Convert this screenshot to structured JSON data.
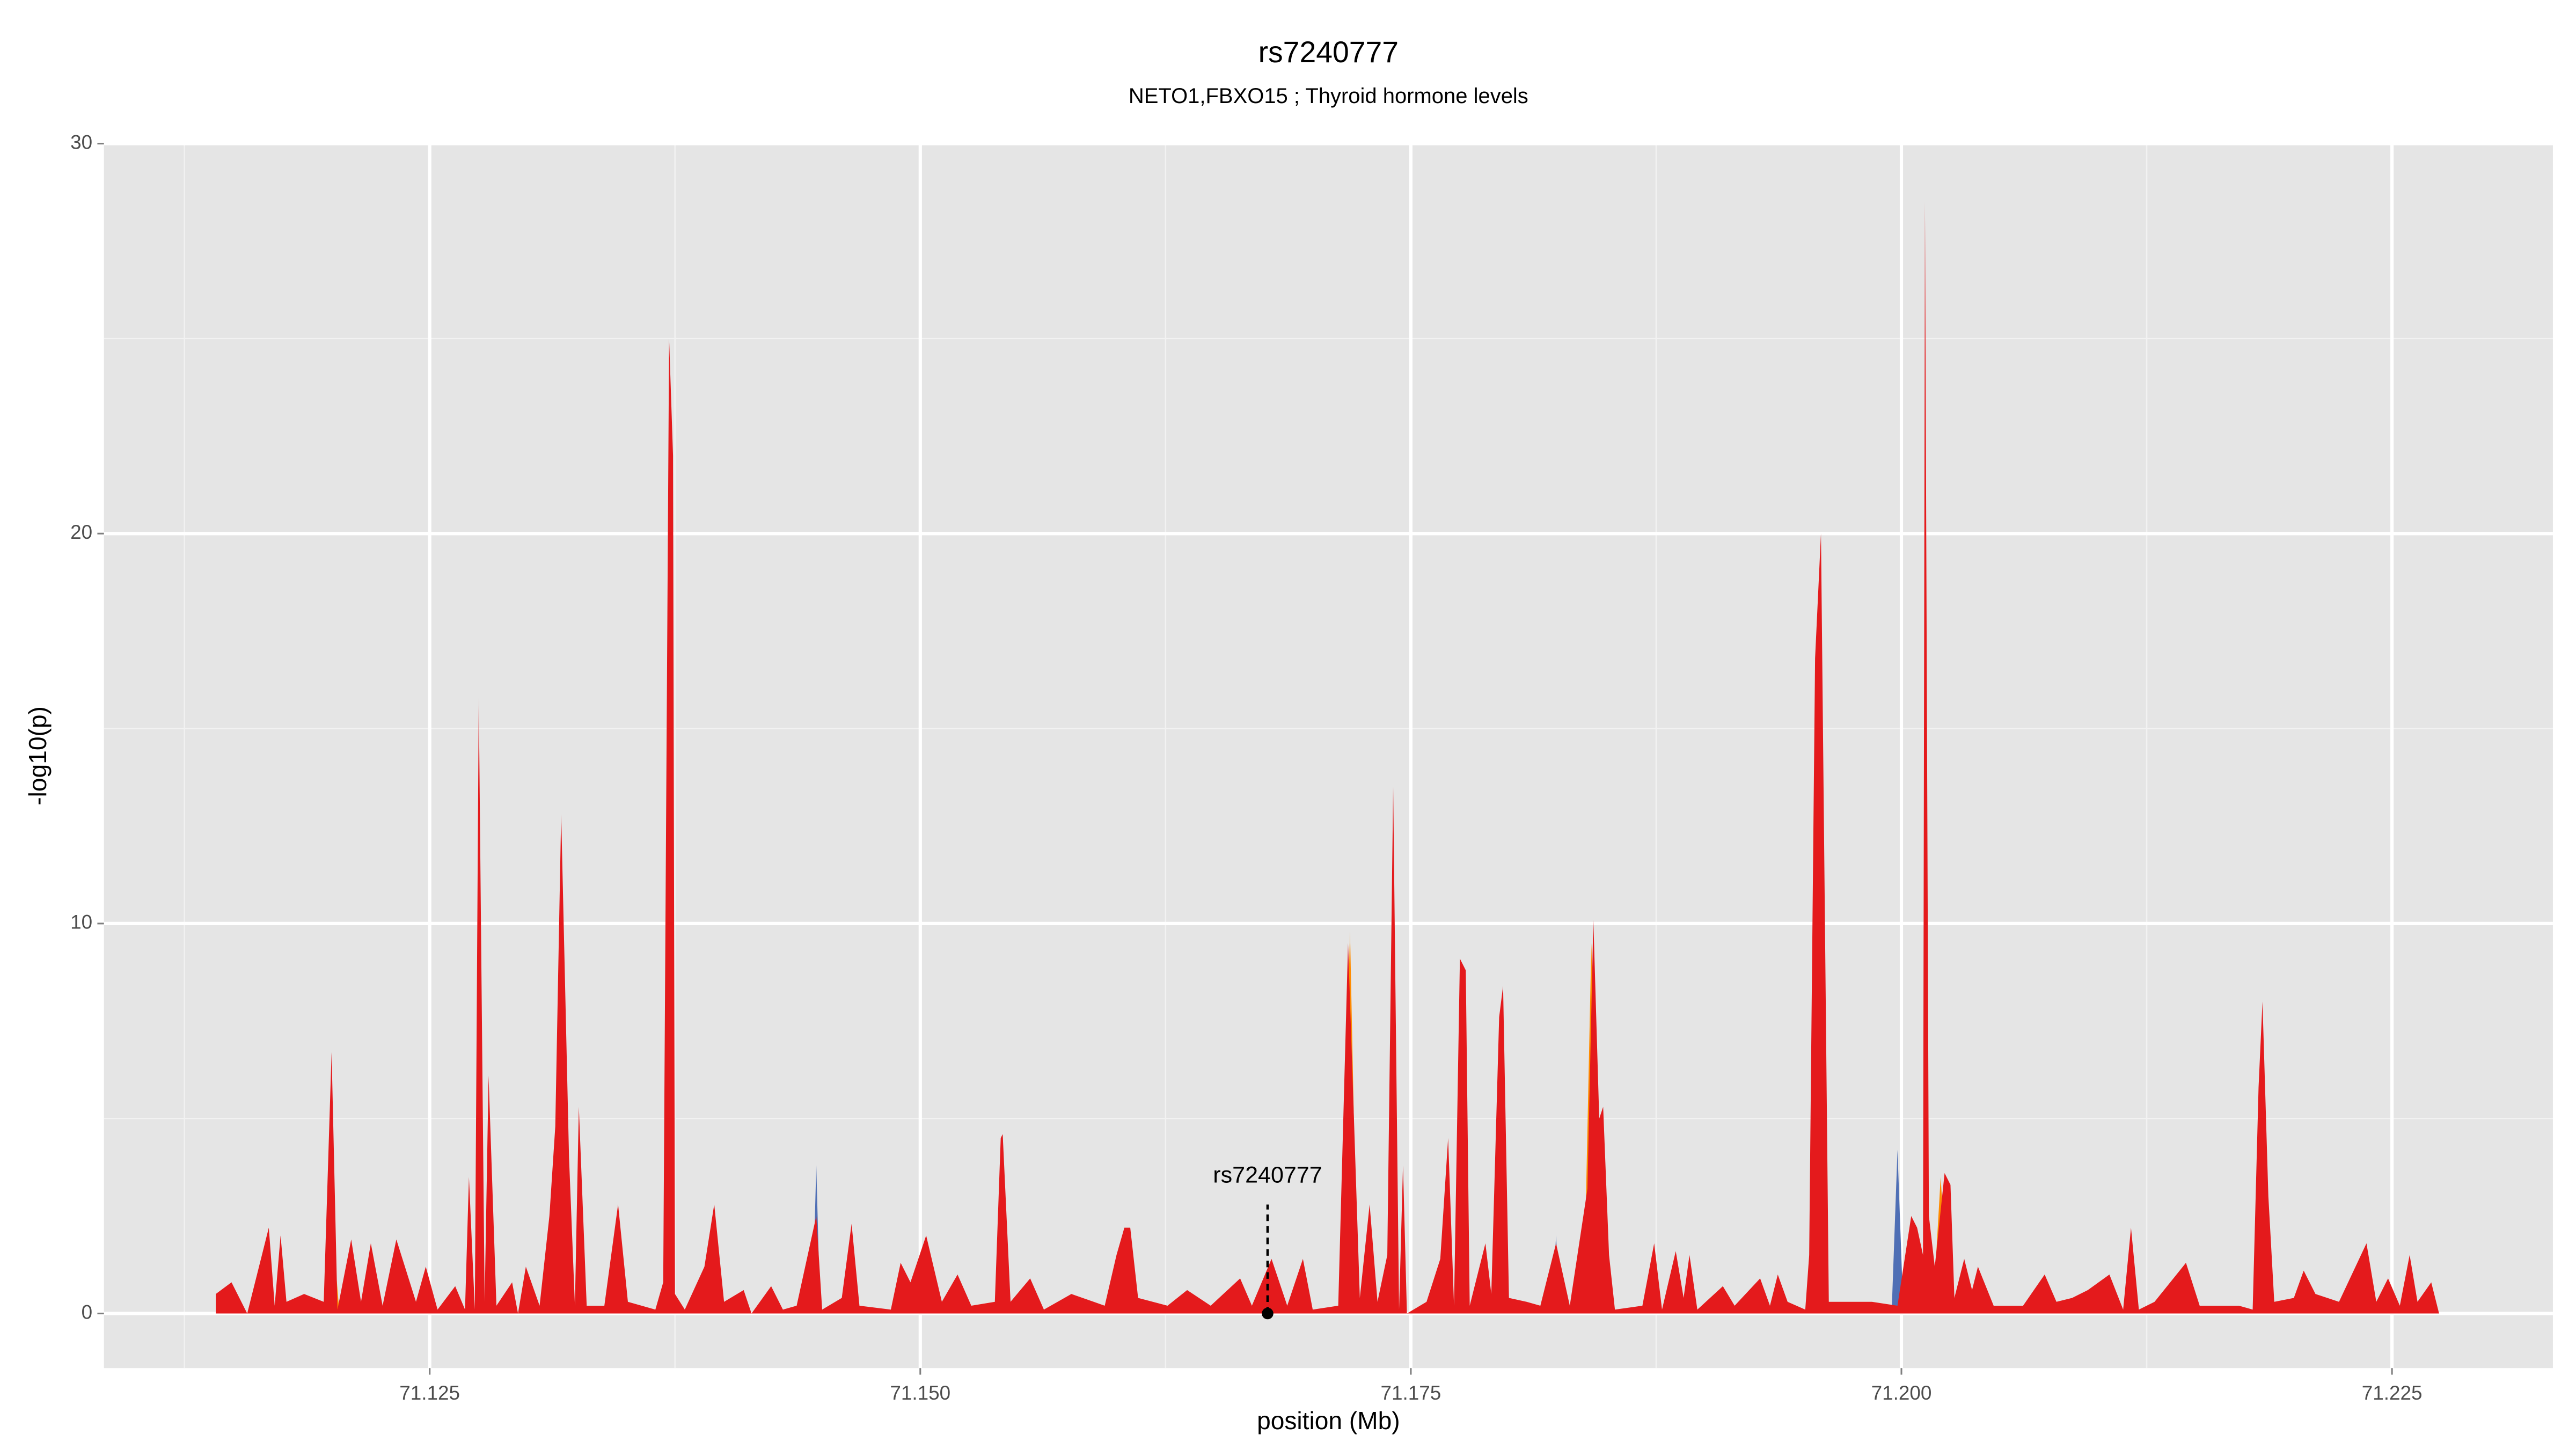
{
  "chart_data": {
    "type": "area",
    "title": "rs7240777",
    "subtitle": "NETO1,FBXO15 ; Thyroid hormone levels",
    "x_label": "position (Mb)",
    "y_label": "-log10(p)",
    "xlim": [
      71.1084,
      71.2332
    ],
    "ylim": [
      -1.4,
      30
    ],
    "xticks": [
      71.125,
      {
        "value": 71.15,
        "label": "71.150"
      },
      71.175,
      {
        "value": 71.2,
        "label": "71.200"
      },
      71.225
    ],
    "yticks": [
      0,
      10,
      20,
      30
    ],
    "minor_xticks": [
      71.1125,
      71.1375,
      71.1625,
      71.1875,
      71.2125
    ],
    "minor_yticks": [
      5,
      15,
      25
    ],
    "grid": true,
    "annotation": {
      "label": "rs7240777",
      "x": 71.1677,
      "y": 0
    },
    "series": [
      {
        "color": "#4f6fb5",
        "x": [
          71.1445,
          71.1447,
          71.1449,
          71.1539,
          71.1542,
          71.1545,
          71.1822,
          71.1824,
          71.1826,
          71.1995,
          71.1998,
          71.2001
        ],
        "values": [
          0,
          3.8,
          0,
          0,
          4.6,
          0,
          0,
          2,
          0,
          0,
          4.2,
          0
        ]
      },
      {
        "color": "#ff8c00",
        "x": [
          71.1196,
          71.12,
          71.1204,
          71.1268,
          71.127,
          71.1272,
          71.1714,
          71.1719,
          71.1723,
          71.1727,
          71.1729,
          71.1731,
          71.1838,
          71.1842,
          71.1846,
          71.2016,
          71.202,
          71.2024
        ],
        "values": [
          0,
          2.5,
          0,
          0,
          3,
          0,
          0,
          9.8,
          0,
          0,
          2.7,
          0,
          0,
          9.5,
          0,
          0,
          3.5,
          0
        ]
      },
      {
        "color": "#e41a1c",
        "x": [
          71.1141,
          71.1149,
          71.1157,
          71.1168,
          71.1171,
          71.1174,
          71.1177,
          71.1186,
          71.1196,
          71.12,
          71.1203,
          71.121,
          71.1215,
          71.122,
          71.1226,
          71.1233,
          71.1243,
          71.1248,
          71.1254,
          71.1263,
          71.1268,
          71.127,
          71.1273,
          71.1275,
          71.1278,
          71.128,
          71.1284,
          71.1292,
          71.1295,
          71.1299,
          71.1306,
          71.1311,
          71.1314,
          71.1317,
          71.1321,
          71.1324,
          71.1326,
          71.133,
          71.1339,
          71.1346,
          71.1351,
          71.1365,
          71.1369,
          71.1372,
          71.1374,
          71.1375,
          71.138,
          71.139,
          71.1395,
          71.14,
          71.141,
          71.1414,
          71.1424,
          71.143,
          71.1437,
          71.1447,
          71.145,
          71.146,
          71.1465,
          71.1469,
          71.1485,
          71.149,
          71.1495,
          71.1503,
          71.1511,
          71.1519,
          71.1526,
          71.1538,
          71.1541,
          71.1542,
          71.1546,
          71.1556,
          71.1563,
          71.1577,
          71.1594,
          71.16,
          71.1604,
          71.1607,
          71.1611,
          71.1626,
          71.1636,
          71.1648,
          71.1663,
          71.1669,
          71.1679,
          71.1687,
          71.1695,
          71.17,
          71.1713,
          71.1718,
          71.1721,
          71.1724,
          71.1729,
          71.1733,
          71.1738,
          71.1741,
          71.1742,
          71.1744,
          71.1746,
          71.1748,
          71.1758,
          71.1765,
          71.1769,
          71.1772,
          71.1775,
          71.1778,
          71.178,
          71.1788,
          71.1791,
          71.1795,
          71.1797,
          71.18,
          71.1809,
          71.1816,
          71.1824,
          71.1831,
          71.184,
          71.1843,
          71.1846,
          71.1848,
          71.1851,
          71.1854,
          71.1868,
          71.1874,
          71.1878,
          71.1885,
          71.1889,
          71.1892,
          71.1896,
          71.1909,
          71.1915,
          71.1928,
          71.1933,
          71.1937,
          71.1942,
          71.1951,
          71.1953,
          71.1956,
          71.1959,
          71.1963,
          71.1976,
          71.1985,
          71.1998,
          71.2005,
          71.2008,
          71.2011,
          71.2012,
          71.2014,
          71.2017,
          71.2022,
          71.2025,
          71.2027,
          71.2032,
          71.2036,
          71.2039,
          71.2047,
          71.2062,
          71.2073,
          71.2079,
          71.2087,
          71.2095,
          71.2106,
          71.2113,
          71.2117,
          71.2121,
          71.2129,
          71.2145,
          71.2152,
          71.2172,
          71.2179,
          71.2182,
          71.2184,
          71.2187,
          71.219,
          71.22,
          71.2205,
          71.2211,
          71.2223,
          71.2237,
          71.2242,
          71.2248,
          71.2254,
          71.2259,
          71.2263,
          71.227,
          71.2274
        ],
        "values": [
          0.5,
          0.8,
          0,
          2.2,
          0.2,
          2,
          0.3,
          0.5,
          0.3,
          6.7,
          0.1,
          1.9,
          0.3,
          1.8,
          0.2,
          1.9,
          0.3,
          1.2,
          0.1,
          0.7,
          0.1,
          3.5,
          0.1,
          15.8,
          0.3,
          6.1,
          0.2,
          0.8,
          0,
          1.2,
          0.2,
          2.5,
          4.8,
          12.8,
          4,
          0.2,
          5.3,
          0.2,
          0.2,
          2.8,
          0.3,
          0.1,
          0.8,
          25,
          22,
          0.5,
          0.1,
          1.2,
          2.8,
          0.3,
          0.6,
          0,
          0.7,
          0.1,
          0.2,
          2.5,
          0.1,
          0.4,
          2.3,
          0.2,
          0.1,
          1.3,
          0.8,
          2,
          0.3,
          1,
          0.2,
          0.3,
          4.5,
          4.6,
          0.3,
          0.9,
          0.1,
          0.5,
          0.2,
          1.5,
          2.2,
          2.2,
          0.4,
          0.2,
          0.6,
          0.2,
          0.9,
          0.2,
          1.4,
          0.2,
          1.4,
          0.1,
          0.2,
          9.5,
          5,
          0.4,
          2.8,
          0.3,
          1.5,
          13.5,
          9,
          0.1,
          3.8,
          0,
          0.3,
          1.4,
          4.5,
          0.2,
          9.1,
          8.8,
          0.2,
          1.8,
          0.5,
          7.6,
          8.4,
          0.4,
          0.3,
          0.2,
          1.8,
          0.2,
          3.2,
          10.1,
          5,
          5.3,
          1.5,
          0.1,
          0.2,
          1.8,
          0.1,
          1.6,
          0.4,
          1.5,
          0.1,
          0.7,
          0.2,
          0.9,
          0.2,
          1,
          0.3,
          0.1,
          1.5,
          16.8,
          20,
          0.3,
          0.3,
          0.3,
          0.2,
          2.5,
          2.2,
          1.5,
          28.5,
          2.5,
          1.2,
          3.6,
          3.3,
          0.4,
          1.4,
          0.6,
          1.2,
          0.2,
          0.2,
          1,
          0.3,
          0.4,
          0.6,
          1,
          0.1,
          2.2,
          0.1,
          0.3,
          1.3,
          0.2,
          0.2,
          0.1,
          5.8,
          8,
          3,
          0.3,
          0.4,
          1.1,
          0.5,
          0.3,
          1.8,
          0.3,
          0.9,
          0.2,
          1.5,
          0.3,
          0.8,
          0
        ]
      }
    ]
  }
}
